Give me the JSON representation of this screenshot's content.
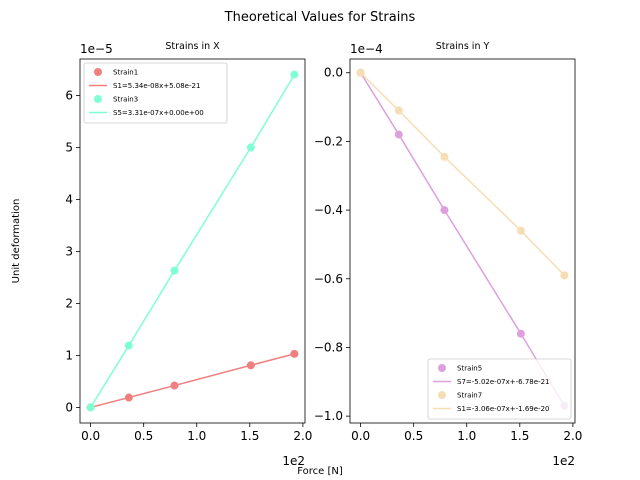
{
  "figure": {
    "title": "Theoretical Values for Strains",
    "ylabel": "Unit deformation",
    "xlabel": "Force [N]"
  },
  "chart_data": [
    {
      "type": "scatter",
      "title": "Strains in X",
      "xlim": [
        -0.1,
        2.02
      ],
      "ylim": [
        -3e-06,
        6.7e-05
      ],
      "x_ticks": [
        0.0,
        0.5,
        1.0,
        1.5,
        2.0
      ],
      "x_tick_labels": [
        "0.0",
        "0.5",
        "1.0",
        "1.5",
        "2.0"
      ],
      "x_offset": "1e2",
      "y_ticks": [
        0,
        1e-05,
        2e-05,
        3e-05,
        4e-05,
        5e-05,
        6e-05
      ],
      "y_tick_labels": [
        "0",
        "1",
        "2",
        "3",
        "4",
        "5",
        "6"
      ],
      "y_offset": "1e−5",
      "legend_position": "upper left",
      "series": [
        {
          "kind": "points",
          "name": "Strain1",
          "color": "#f08080",
          "x": [
            0.0,
            0.36,
            0.79,
            1.51,
            1.92
          ],
          "y": [
            0,
            1.9e-06,
            4.2e-06,
            8.1e-06,
            1.03e-05
          ]
        },
        {
          "kind": "line",
          "name": "S1=5.34e-08x+5.08e-21",
          "color": "#f08080",
          "x": [
            0.0,
            0.36,
            0.79,
            1.51,
            1.92
          ],
          "y": [
            0,
            1.9e-06,
            4.2e-06,
            8.1e-06,
            1.03e-05
          ]
        },
        {
          "kind": "points",
          "name": "Strain3",
          "color": "#7fffd4",
          "x": [
            0.0,
            0.36,
            0.79,
            1.51,
            1.92
          ],
          "y": [
            0,
            1.19e-05,
            2.63e-05,
            5e-05,
            6.4e-05
          ]
        },
        {
          "kind": "line",
          "name": "S5=3.31e-07x+0.00e+00",
          "color": "#7fffd4",
          "x": [
            0.0,
            0.36,
            0.79,
            1.51,
            1.92
          ],
          "y": [
            0,
            1.19e-05,
            2.63e-05,
            5e-05,
            6.4e-05
          ]
        }
      ]
    },
    {
      "type": "scatter",
      "title": "Strains in Y",
      "xlim": [
        -0.1,
        2.02
      ],
      "ylim": [
        -0.000102,
        4e-06
      ],
      "x_ticks": [
        0.0,
        0.5,
        1.0,
        1.5,
        2.0
      ],
      "x_tick_labels": [
        "0.0",
        "0.5",
        "1.0",
        "1.5",
        "2.0"
      ],
      "x_offset": "1e2",
      "y_ticks": [
        0,
        -2e-05,
        -4e-05,
        -6e-05,
        -8e-05,
        -0.0001
      ],
      "y_tick_labels": [
        "0.0",
        "−0.2",
        "−0.4",
        "−0.6",
        "−0.8",
        "−1.0"
      ],
      "y_offset": "1e−4",
      "legend_position": "lower right",
      "series": [
        {
          "kind": "points",
          "name": "Strain5",
          "color": "#dda0dd",
          "x": [
            0.0,
            0.36,
            0.79,
            1.51,
            1.92
          ],
          "y": [
            0,
            -1.8e-05,
            -4e-05,
            -7.6e-05,
            -9.7e-05
          ]
        },
        {
          "kind": "line",
          "name": "S7=-5.02e-07x+-6.78e-21",
          "color": "#dda0dd",
          "x": [
            0.0,
            0.36,
            0.79,
            1.51,
            1.92
          ],
          "y": [
            0,
            -1.8e-05,
            -4e-05,
            -7.6e-05,
            -9.7e-05
          ]
        },
        {
          "kind": "points",
          "name": "Strain7",
          "color": "#f5deb3",
          "x": [
            0.0,
            0.36,
            0.79,
            1.51,
            1.92
          ],
          "y": [
            0,
            -1.1e-05,
            -2.45e-05,
            -4.6e-05,
            -5.9e-05
          ]
        },
        {
          "kind": "line",
          "name": "S1=-3.06e-07x+-1.69e-20",
          "color": "#f5deb3",
          "x": [
            0.0,
            0.36,
            0.79,
            1.51,
            1.92
          ],
          "y": [
            0,
            -1.1e-05,
            -2.45e-05,
            -4.6e-05,
            -5.9e-05
          ]
        }
      ]
    }
  ]
}
